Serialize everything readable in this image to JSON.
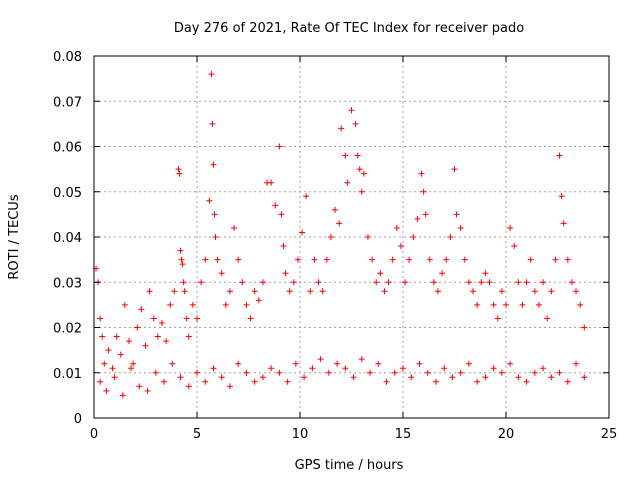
{
  "chart_data": {
    "type": "scatter",
    "title": "Day 276 of 2021, Rate Of TEC Index for receiver pado",
    "xlabel": "GPS time / hours",
    "ylabel": "ROTI / TECUs",
    "xlim": [
      0,
      25
    ],
    "ylim": [
      0,
      0.08
    ],
    "xticks": [
      0,
      5,
      10,
      15,
      20,
      25
    ],
    "xtick_labels": [
      "0",
      "5",
      "10",
      "15",
      "20",
      "25"
    ],
    "yticks": [
      0,
      0.01,
      0.02,
      0.03,
      0.04,
      0.05,
      0.06,
      0.07,
      0.08
    ],
    "ytick_labels": [
      "0",
      "0.01",
      "0.02",
      "0.03",
      "0.04",
      "0.05",
      "0.06",
      "0.07",
      "0.08"
    ],
    "grid": true,
    "marker": "+",
    "marker_color": "#ff0000",
    "series": [
      {
        "x": [
          0.1,
          0.2,
          0.3,
          0.4,
          0.5,
          0.7,
          0.9,
          1.1,
          1.3,
          1.5,
          1.7,
          1.9,
          2.1,
          2.3,
          2.5,
          2.7,
          2.9,
          3.1,
          3.3,
          3.5,
          3.7,
          3.9,
          4.1,
          4.15,
          4.2,
          4.25,
          4.3,
          4.35,
          4.4,
          4.5,
          4.6,
          4.8,
          5.0,
          5.2,
          5.4,
          5.6,
          5.7,
          5.75,
          5.8,
          5.85,
          5.9,
          6.0,
          6.2,
          6.4,
          6.6,
          6.8,
          7.0,
          7.2,
          7.4,
          7.6,
          7.8,
          8.0,
          8.2,
          8.4,
          8.6,
          8.8,
          9.0,
          9.1,
          9.2,
          9.3,
          9.5,
          9.7,
          9.9,
          10.1,
          10.3,
          10.5,
          10.7,
          10.9,
          11.1,
          11.3,
          11.5,
          11.7,
          11.9,
          12.0,
          12.2,
          12.3,
          12.5,
          12.7,
          12.8,
          12.9,
          13.0,
          13.1,
          13.3,
          13.5,
          13.7,
          13.9,
          14.1,
          14.3,
          14.5,
          14.7,
          14.9,
          15.1,
          15.3,
          15.5,
          15.7,
          15.9,
          16.0,
          16.1,
          16.3,
          16.5,
          16.7,
          16.9,
          17.1,
          17.3,
          17.5,
          17.6,
          17.8,
          18.0,
          18.2,
          18.4,
          18.6,
          18.8,
          19.0,
          19.2,
          19.4,
          19.6,
          19.8,
          20.0,
          20.2,
          20.4,
          20.6,
          20.8,
          21.0,
          21.2,
          21.4,
          21.6,
          21.8,
          22.0,
          22.2,
          22.4,
          22.6,
          22.7,
          22.8,
          23.0,
          23.2,
          23.4,
          23.6,
          23.8,
          0.3,
          0.6,
          1.0,
          1.4,
          1.8,
          2.2,
          2.6,
          3.0,
          3.4,
          3.8,
          4.2,
          4.6,
          5.0,
          5.4,
          5.8,
          6.2,
          6.6,
          7.0,
          7.4,
          7.8,
          8.2,
          8.6,
          9.0,
          9.4,
          9.8,
          10.2,
          10.6,
          11.0,
          11.4,
          11.8,
          12.2,
          12.6,
          13.0,
          13.4,
          13.8,
          14.2,
          14.6,
          15.0,
          15.4,
          15.8,
          16.2,
          16.6,
          17.0,
          17.4,
          17.8,
          18.2,
          18.6,
          19.0,
          19.4,
          19.8,
          20.2,
          20.6,
          21.0,
          21.4,
          21.8,
          22.2,
          22.6,
          23.0,
          23.4,
          23.8
        ],
        "y": [
          0.033,
          0.03,
          0.022,
          0.018,
          0.012,
          0.015,
          0.011,
          0.018,
          0.014,
          0.025,
          0.017,
          0.012,
          0.02,
          0.024,
          0.016,
          0.028,
          0.022,
          0.018,
          0.021,
          0.017,
          0.025,
          0.028,
          0.055,
          0.054,
          0.037,
          0.035,
          0.034,
          0.03,
          0.028,
          0.022,
          0.018,
          0.025,
          0.022,
          0.03,
          0.035,
          0.048,
          0.076,
          0.065,
          0.056,
          0.045,
          0.04,
          0.035,
          0.032,
          0.025,
          0.028,
          0.042,
          0.035,
          0.03,
          0.025,
          0.022,
          0.028,
          0.026,
          0.03,
          0.052,
          0.052,
          0.047,
          0.06,
          0.045,
          0.038,
          0.032,
          0.028,
          0.03,
          0.035,
          0.041,
          0.049,
          0.028,
          0.035,
          0.03,
          0.028,
          0.035,
          0.04,
          0.046,
          0.043,
          0.064,
          0.058,
          0.052,
          0.068,
          0.065,
          0.058,
          0.055,
          0.05,
          0.054,
          0.04,
          0.035,
          0.03,
          0.032,
          0.028,
          0.03,
          0.035,
          0.042,
          0.038,
          0.03,
          0.035,
          0.04,
          0.044,
          0.054,
          0.05,
          0.045,
          0.035,
          0.03,
          0.028,
          0.032,
          0.035,
          0.04,
          0.055,
          0.045,
          0.042,
          0.035,
          0.03,
          0.028,
          0.025,
          0.03,
          0.032,
          0.03,
          0.025,
          0.022,
          0.028,
          0.025,
          0.042,
          0.038,
          0.03,
          0.025,
          0.03,
          0.035,
          0.028,
          0.025,
          0.03,
          0.022,
          0.028,
          0.035,
          0.058,
          0.049,
          0.043,
          0.035,
          0.03,
          0.028,
          0.025,
          0.02,
          0.008,
          0.006,
          0.009,
          0.005,
          0.011,
          0.007,
          0.006,
          0.01,
          0.008,
          0.012,
          0.009,
          0.007,
          0.01,
          0.008,
          0.011,
          0.009,
          0.007,
          0.012,
          0.01,
          0.008,
          0.009,
          0.011,
          0.01,
          0.008,
          0.012,
          0.009,
          0.011,
          0.013,
          0.01,
          0.012,
          0.011,
          0.009,
          0.013,
          0.01,
          0.012,
          0.008,
          0.01,
          0.011,
          0.009,
          0.012,
          0.01,
          0.008,
          0.011,
          0.009,
          0.01,
          0.012,
          0.008,
          0.009,
          0.011,
          0.01,
          0.012,
          0.009,
          0.008,
          0.01,
          0.011,
          0.009,
          0.01,
          0.008,
          0.012,
          0.009
        ]
      }
    ]
  }
}
